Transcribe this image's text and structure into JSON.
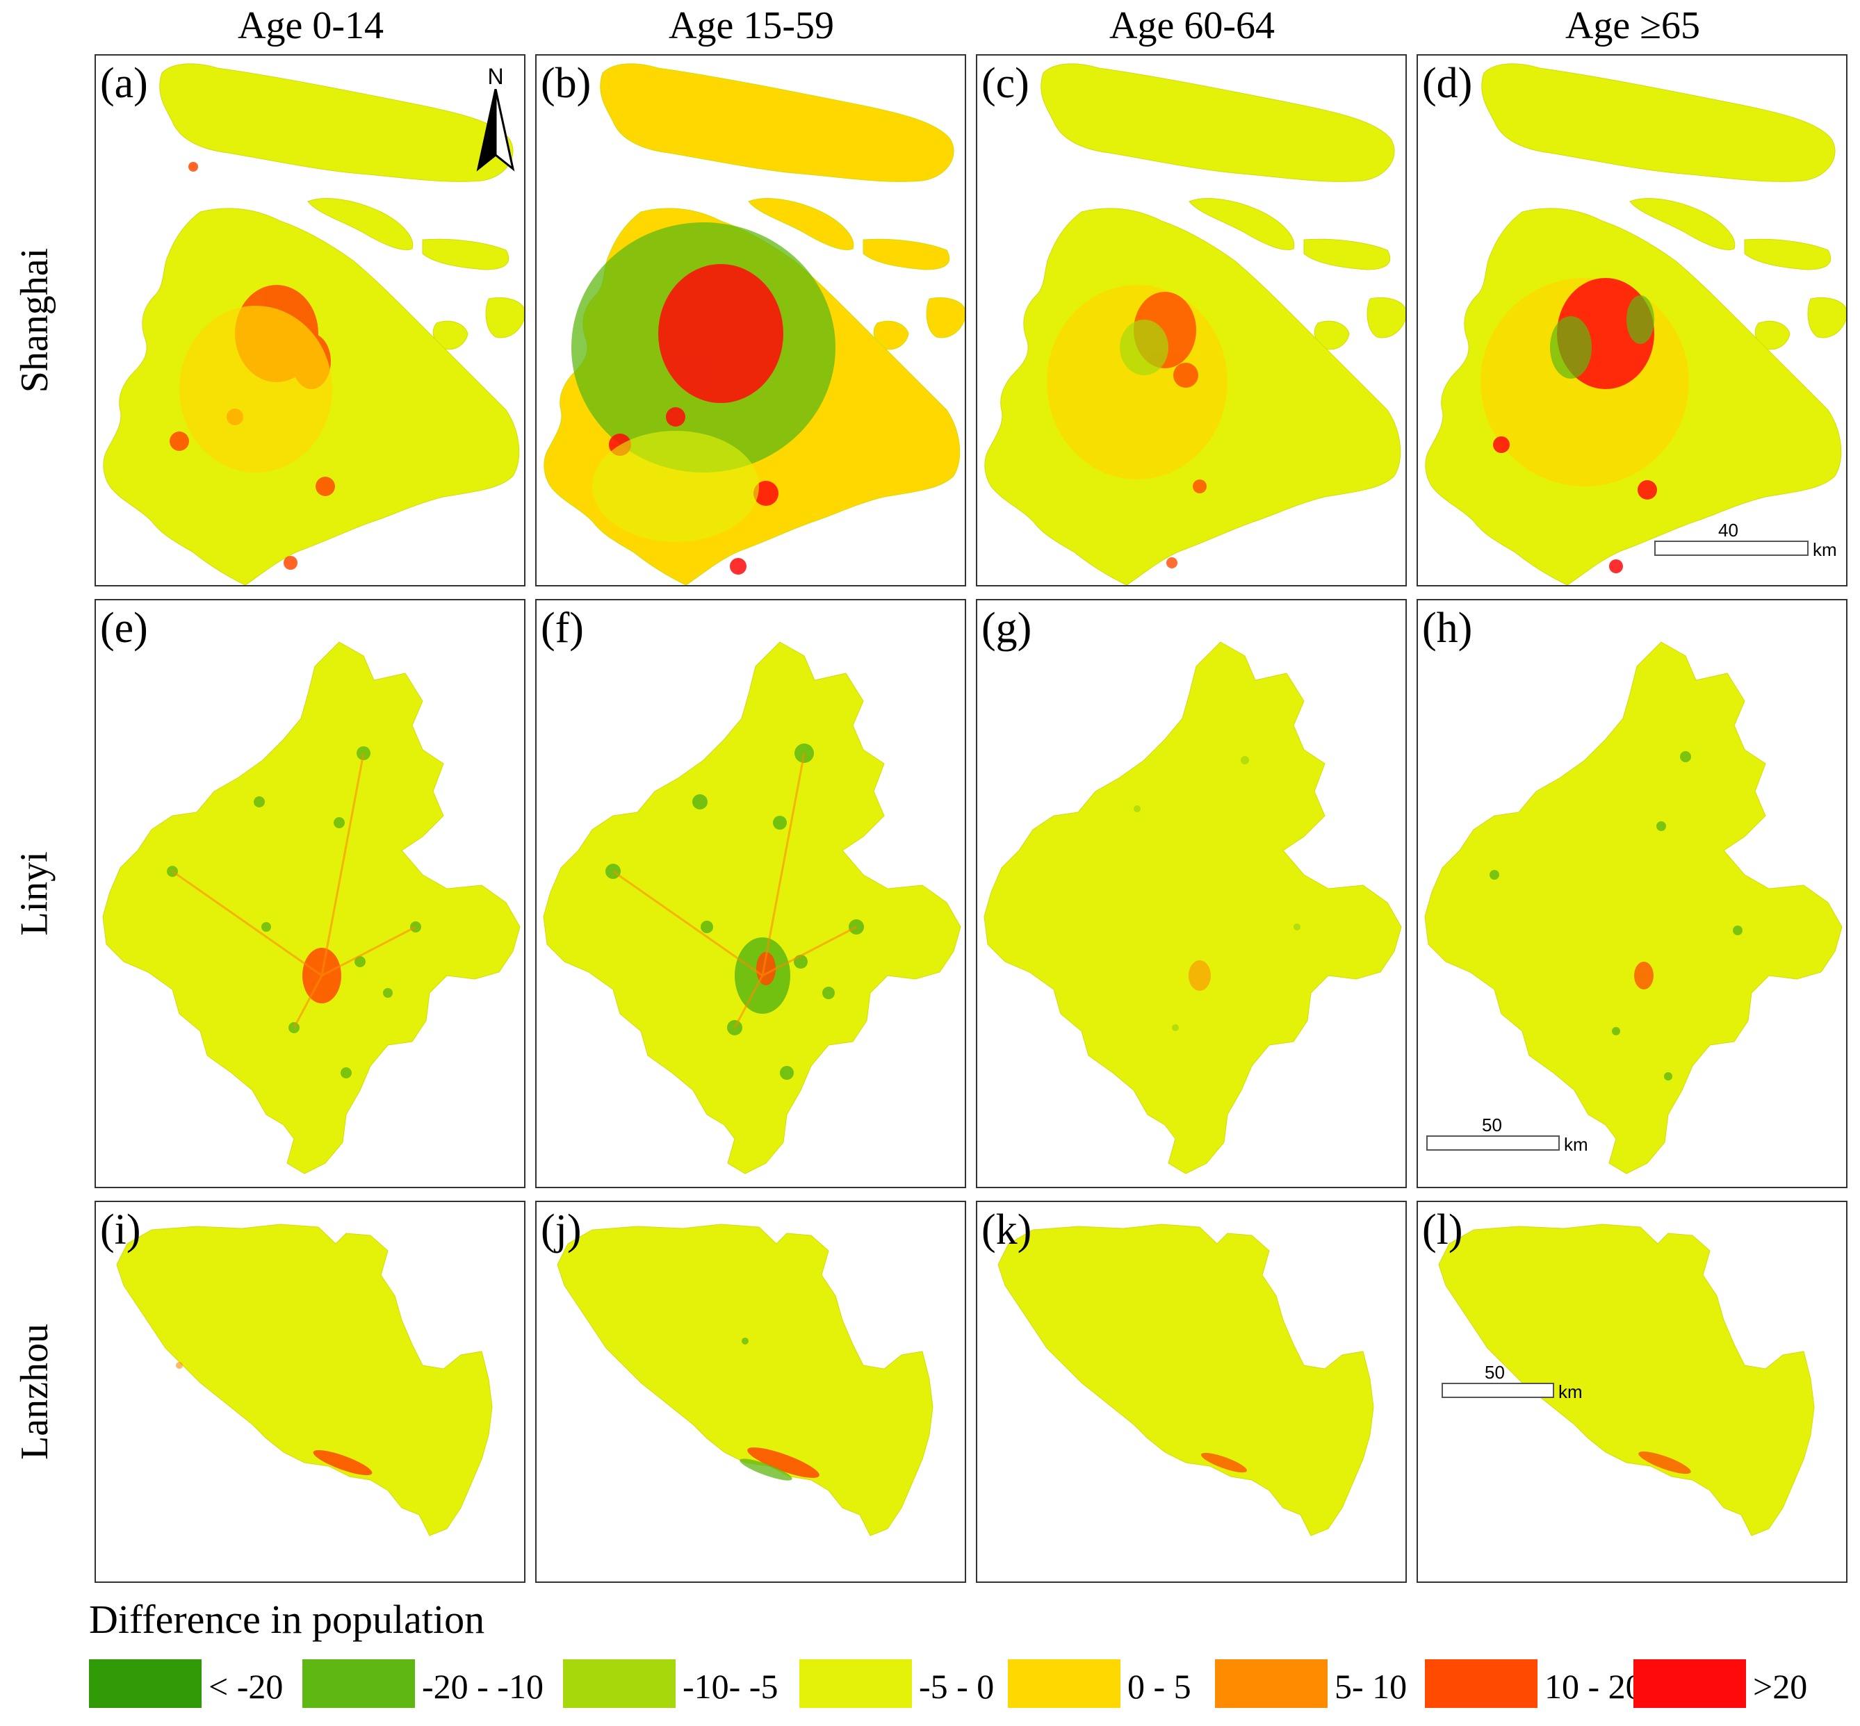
{
  "columns": [
    "Age 0-14",
    "Age 15-59",
    "Age 60-64",
    "Age ≥65"
  ],
  "rows": [
    "Shanghai",
    "Linyi",
    "Lanzhou"
  ],
  "panels": [
    "(a)",
    "(b)",
    "(c)",
    "(d)",
    "(e)",
    "(f)",
    "(g)",
    "(h)",
    "(i)",
    "(j)",
    "(k)",
    "(l)"
  ],
  "north_arrow": {
    "label": "N"
  },
  "scalebars": [
    {
      "value": "40",
      "unit": "km"
    },
    {
      "value": "50",
      "unit": "km"
    },
    {
      "value": "50",
      "unit": "km"
    }
  ],
  "legend": {
    "title": "Difference in population",
    "classes": [
      {
        "label": "< -20",
        "color": "#2f9a05"
      },
      {
        "label": "-20 - -10",
        "color": "#5fb812"
      },
      {
        "label": "-10- -5",
        "color": "#a6d80c"
      },
      {
        "label": "-5 - 0",
        "color": "#e4f20a"
      },
      {
        "label": "0 - 5",
        "color": "#ffd800"
      },
      {
        "label": "5- 10",
        "color": "#ff8c00"
      },
      {
        "label": "10 - 20",
        "color": "#ff4a00"
      },
      {
        "label": ">20",
        "color": "#ff0a0a"
      }
    ]
  }
}
